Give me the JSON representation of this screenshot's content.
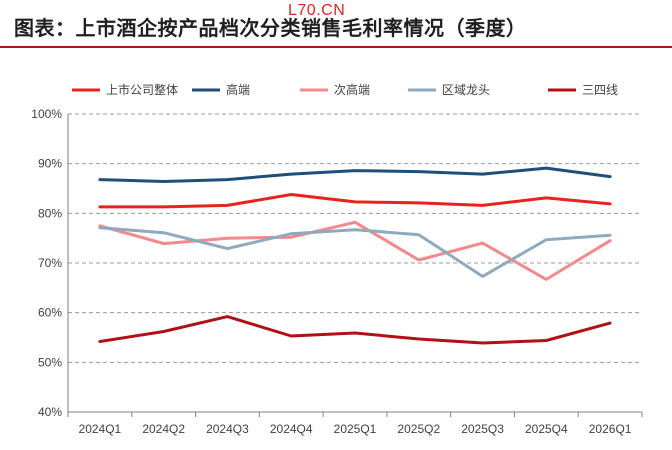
{
  "header": {
    "title": "图表：上市酒企按产品档次分类销售毛利率情况（季度）",
    "watermark": "L70.CN"
  },
  "chart_data": {
    "type": "line",
    "title": "图表：上市酒企按产品档次分类销售毛利率情况（季度）",
    "xlabel": "",
    "ylabel": "",
    "categories": [
      "2024Q1",
      "2024Q2",
      "2024Q3",
      "2024Q4",
      "2025Q1",
      "2025Q2",
      "2025Q3",
      "2025Q4",
      "2026Q1"
    ],
    "ylim": [
      40,
      100
    ],
    "yticks": [
      "40%",
      "50%",
      "60%",
      "70%",
      "80%",
      "90%",
      "100%"
    ],
    "y_tick_values": [
      40,
      50,
      60,
      70,
      80,
      90,
      100
    ],
    "grid": "horizontal-dashed",
    "legend_position": "top",
    "series": [
      {
        "name": "上市公司整体",
        "color": "#e8231e",
        "values": [
          81.3,
          81.3,
          81.6,
          83.8,
          82.3,
          82.1,
          81.6,
          83.1,
          81.9
        ]
      },
      {
        "name": "高端",
        "color": "#1f4e79",
        "values": [
          86.8,
          86.4,
          86.8,
          87.9,
          88.6,
          88.4,
          87.9,
          89.1,
          87.4
        ]
      },
      {
        "name": "次高端",
        "color": "#f4888a",
        "values": [
          77.5,
          73.9,
          75.0,
          75.2,
          78.2,
          70.6,
          74.0,
          66.7,
          74.5
        ]
      },
      {
        "name": "区域龙头",
        "color": "#8faabf",
        "values": [
          77.1,
          76.1,
          72.9,
          75.9,
          76.7,
          75.7,
          67.3,
          74.7,
          75.6
        ]
      },
      {
        "name": "三四线",
        "color": "#b01116",
        "values": [
          54.2,
          56.2,
          59.2,
          55.3,
          55.9,
          54.7,
          53.9,
          54.4,
          57.9
        ]
      }
    ]
  }
}
